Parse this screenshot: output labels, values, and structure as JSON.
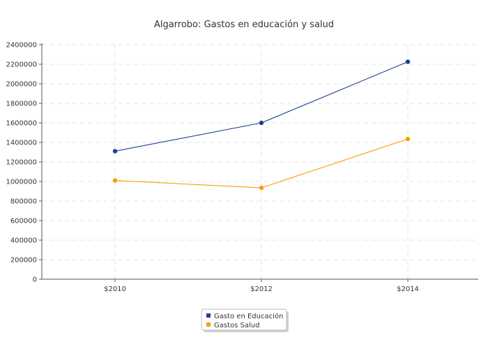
{
  "chart_data": {
    "type": "line",
    "title": "Algarrobo: Gastos en educación y salud",
    "xlabel": "",
    "ylabel": "",
    "categories": [
      "$2010",
      "$2012",
      "$2014"
    ],
    "ylim": [
      0,
      2400000
    ],
    "yticks": [
      0,
      200000,
      400000,
      600000,
      800000,
      1000000,
      1200000,
      1400000,
      1600000,
      1800000,
      2000000,
      2200000,
      2400000
    ],
    "grid": true,
    "legend_position": "bottom-center",
    "series": [
      {
        "name": "Gasto en Educación",
        "color": "#1f3f8f",
        "values": [
          1310000,
          1600000,
          2225000
        ]
      },
      {
        "name": "Gastos Salud",
        "color": "#f5a000",
        "values": [
          1010000,
          935000,
          1435000
        ]
      }
    ]
  }
}
